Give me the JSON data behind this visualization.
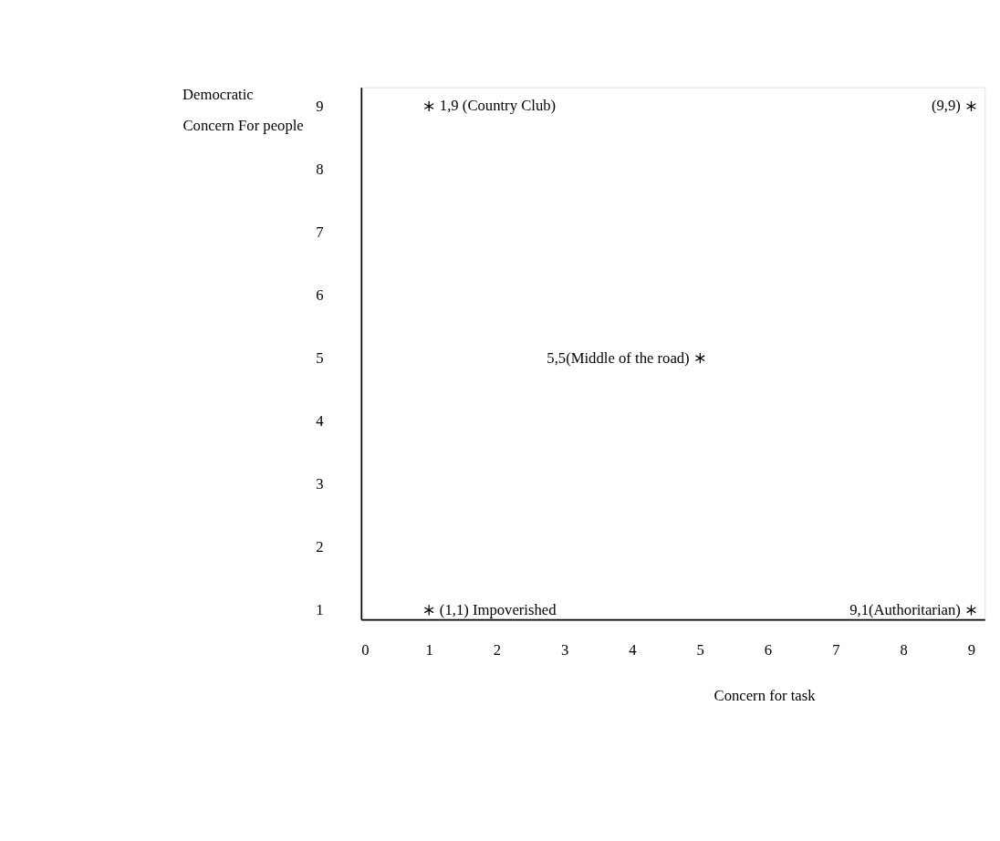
{
  "chart_data": {
    "type": "scatter",
    "xlabel": "Concern for task",
    "ylabel": "Concern For people",
    "annotations": [
      "Democratic",
      {
        "text": "1,9 (Country Club)",
        "x": 1,
        "y": 9
      },
      {
        "text": "(9,9)",
        "x": 9,
        "y": 9
      },
      {
        "text": "5,5(Middle of the road)",
        "x": 5,
        "y": 5
      },
      {
        "text": "(1,1) Impoverished",
        "x": 1,
        "y": 1
      },
      {
        "text": "9,1(Authoritarian)",
        "x": 9,
        "y": 1
      }
    ],
    "x": [
      1,
      9,
      5,
      1,
      9
    ],
    "values": [
      9,
      9,
      5,
      1,
      1
    ],
    "color": "#000000",
    "marker": "cross",
    "xlim": [
      0,
      9.2
    ],
    "xticks": [
      0,
      1,
      2,
      3,
      4,
      5,
      6,
      7,
      8,
      9
    ],
    "ylim": [
      0.85,
      9.3
    ],
    "yticks": [
      1,
      2,
      3,
      4,
      5,
      6,
      7,
      8,
      9
    ]
  }
}
